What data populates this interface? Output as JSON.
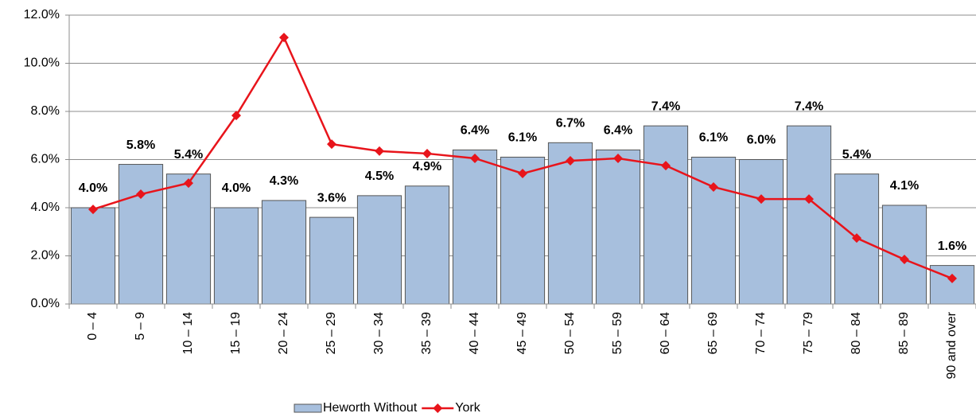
{
  "chart_data": {
    "type": "bar",
    "categories": [
      "0 – 4",
      "5 – 9",
      "10 – 14",
      "15 – 19",
      "20 – 24",
      "25 – 29",
      "30 – 34",
      "35 – 39",
      "40 – 44",
      "45 – 49",
      "50 – 54",
      "55 – 59",
      "60 – 64",
      "65 – 69",
      "70 – 74",
      "75 – 79",
      "80 – 84",
      "85 – 89",
      "90 and over"
    ],
    "series": [
      {
        "name": "Heworth Without",
        "type": "bar",
        "color": "#a7bfdd",
        "values": [
          4.0,
          5.8,
          5.4,
          4.0,
          4.3,
          3.6,
          4.5,
          4.9,
          6.4,
          6.1,
          6.7,
          6.4,
          7.4,
          6.1,
          6.0,
          7.4,
          5.4,
          4.1,
          1.6
        ],
        "value_labels": [
          "4.0%",
          "5.8%",
          "5.4%",
          "4.0%",
          "4.3%",
          "3.6%",
          "4.5%",
          "4.9%",
          "6.4%",
          "6.1%",
          "6.7%",
          "6.4%",
          "7.4%",
          "6.1%",
          "6.0%",
          "7.4%",
          "5.4%",
          "4.1%",
          "1.6%"
        ]
      },
      {
        "name": "York",
        "type": "line",
        "color": "#e8141b",
        "values": [
          3.93,
          4.56,
          5.02,
          7.83,
          11.07,
          6.64,
          6.35,
          6.25,
          6.05,
          5.42,
          5.95,
          6.05,
          5.75,
          4.86,
          4.36,
          4.36,
          2.74,
          1.85,
          1.06
        ]
      }
    ],
    "ylim": [
      0,
      12
    ],
    "yticks": [
      {
        "value": 0,
        "label": "0.0%"
      },
      {
        "value": 2,
        "label": "2.0%"
      },
      {
        "value": 4,
        "label": "4.0%"
      },
      {
        "value": 6,
        "label": "6.0%"
      },
      {
        "value": 8,
        "label": "8.0%"
      },
      {
        "value": 10,
        "label": "10.0%"
      },
      {
        "value": 12,
        "label": "12.0%"
      }
    ],
    "grid": true,
    "legend": "bottom"
  }
}
